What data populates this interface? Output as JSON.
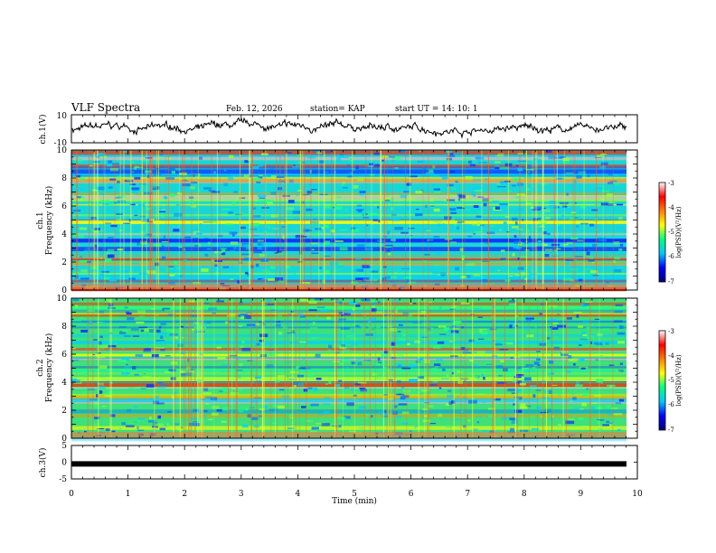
{
  "header": {
    "title": "VLF Spectra",
    "date": "Feb. 12, 2026",
    "station": "station= KAP",
    "start": "start  UT  =   14: 10: 1"
  },
  "chart_data": {
    "type": "heatmap",
    "xlabel": "Time  (min)",
    "xlim": [
      0,
      10
    ],
    "xticks": [
      "0",
      "1",
      "2",
      "3",
      "4",
      "5",
      "6",
      "7",
      "8",
      "9",
      "10"
    ],
    "panels": {
      "ch1_wave": {
        "ylabel": "ch.1(V)",
        "ylim": [
          -10,
          10
        ],
        "yticks": [
          "10",
          "-10"
        ],
        "line_color": "#000000"
      },
      "spec1": {
        "ylabel_top": "ch.1",
        "ylabel": "Frequency  (kHz)",
        "ylim": [
          0,
          10
        ],
        "yticks": [
          "0",
          "2",
          "4",
          "6",
          "8",
          "10"
        ],
        "colorbar": {
          "label": "log(PSD)(V²/Hz)",
          "range": [
            -7,
            -3
          ],
          "ticks": [
            "-3",
            "-4",
            "-5",
            "-6",
            "-7"
          ]
        }
      },
      "spec2": {
        "ylabel_top": "ch.2",
        "ylabel": "Frequency  (kHz)",
        "ylim": [
          0,
          10
        ],
        "yticks": [
          "0",
          "2",
          "4",
          "6",
          "8",
          "10"
        ],
        "colorbar": {
          "label": "log(PSD)(V²/Hz)",
          "range": [
            -7,
            -3
          ],
          "ticks": [
            "-3",
            "-4",
            "-5",
            "-6",
            "-7"
          ]
        }
      },
      "ch3_wave": {
        "ylabel": "ch.3(V)",
        "ylim": [
          -5,
          5
        ],
        "yticks": [
          "5",
          "0",
          "-5"
        ],
        "trace_level": -0.5,
        "line_color": "#000000"
      }
    },
    "colormap": [
      "#000080",
      "#0000ff",
      "#00c8ff",
      "#00ff80",
      "#ffff00",
      "#ff8000",
      "#ff0000",
      "#ffffff"
    ]
  }
}
